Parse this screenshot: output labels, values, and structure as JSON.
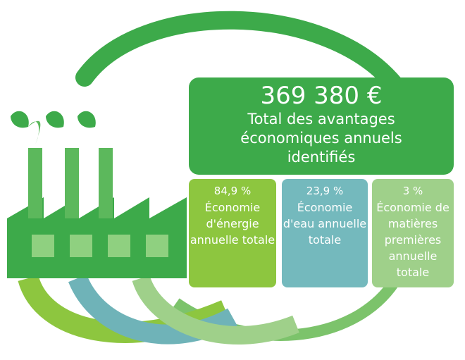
{
  "summary": {
    "amount": "369 380 €",
    "label": "Total des avantages économiques annuels identifiés"
  },
  "boxes": [
    {
      "value": "84,9 %",
      "label": "Économie d'énergie annuelle totale"
    },
    {
      "value": "23,9 %",
      "label": "Économie d'eau annuelle totale"
    },
    {
      "value": "3 %",
      "label": "Économie de matières premières annuelle totale"
    }
  ]
}
